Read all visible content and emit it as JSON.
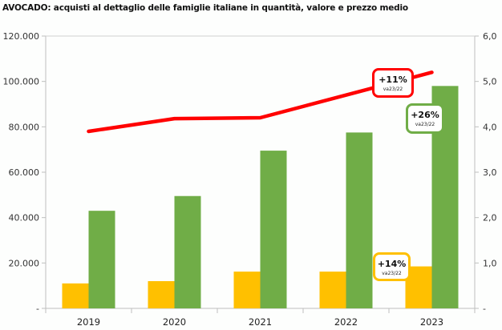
{
  "chart_data": {
    "type": "bar",
    "title": "AVOCADO: acquisti al dettaglio delle famiglie italiane in quantità, valore e prezzo medio",
    "categories": [
      "2019",
      "2020",
      "2021",
      "2022",
      "2023"
    ],
    "series": [
      {
        "name": "Quantità",
        "type": "bar",
        "axis": "left",
        "color": "#ffc000",
        "values": [
          11000,
          12000,
          16200,
          16200,
          18500
        ]
      },
      {
        "name": "Valore",
        "type": "bar",
        "axis": "left",
        "color": "#70ad47",
        "values": [
          43000,
          49500,
          69500,
          77500,
          98000
        ]
      },
      {
        "name": "Prezzo medio",
        "type": "line",
        "axis": "right",
        "color": "#ff0000",
        "values": [
          3.9,
          4.18,
          4.2,
          4.7,
          5.2
        ]
      }
    ],
    "left_axis": {
      "ylim": [
        0,
        120000
      ],
      "ticks": [
        "-",
        "20.000",
        "40.000",
        "60.000",
        "80.000",
        "100.000",
        "120.000"
      ],
      "tick_values": [
        0,
        20000,
        40000,
        60000,
        80000,
        100000,
        120000
      ]
    },
    "right_axis": {
      "ylim": [
        0,
        6
      ],
      "ticks": [
        "-",
        "1,0",
        "2,0",
        "3,0",
        "4,0",
        "5,0",
        "6,0"
      ],
      "tick_values": [
        0,
        1,
        2,
        3,
        4,
        5,
        6
      ]
    },
    "grid": false,
    "annotations": [
      {
        "series": "Prezzo medio",
        "text": "+11%",
        "subtext": "va23/22",
        "color": "#ff0000"
      },
      {
        "series": "Valore",
        "text": "+26%",
        "subtext": "va23/22",
        "color": "#70ad47"
      },
      {
        "series": "Quantità",
        "text": "+14%",
        "subtext": "va23/22",
        "color": "#ffc000"
      }
    ]
  }
}
